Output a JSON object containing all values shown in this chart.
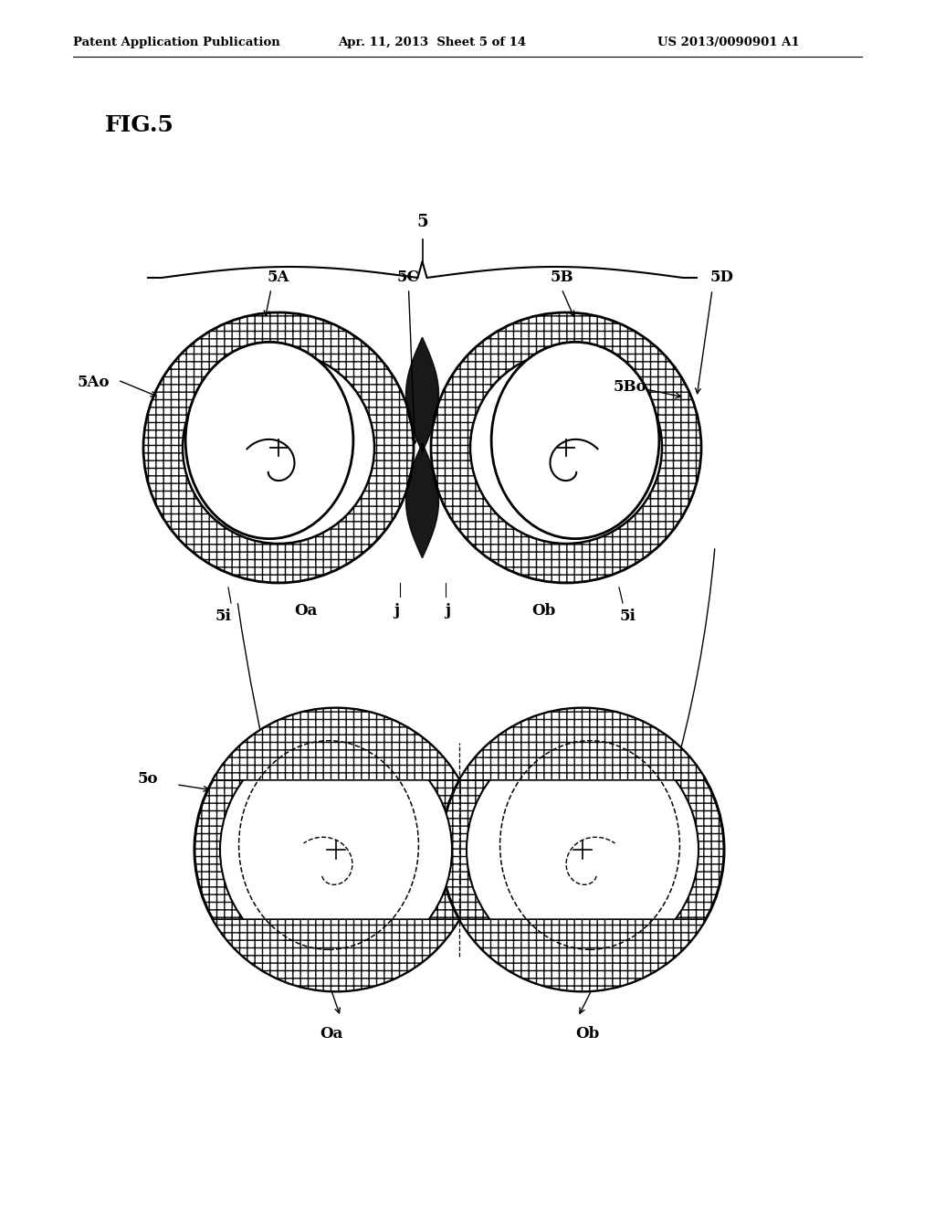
{
  "header_left": "Patent Application Publication",
  "header_mid": "Apr. 11, 2013  Sheet 5 of 14",
  "header_right": "US 2013/0090901 A1",
  "fig_label": "FIG.5",
  "bg_color": "#ffffff",
  "line_color": "#000000",
  "label_5": "5",
  "label_5A": "5A",
  "label_5B": "5B",
  "label_5C": "5C",
  "label_5D": "5D",
  "label_5Ao": "5Ao",
  "label_5Bo": "5Bo",
  "label_5i_L": "5i",
  "label_5i_R": "5i",
  "label_Oa": "Oa",
  "label_Ob": "Ob",
  "label_j_L": "j",
  "label_j_R": "j",
  "label_5o": "5o",
  "label_Oa2": "Oa",
  "label_Ob2": "Ob"
}
